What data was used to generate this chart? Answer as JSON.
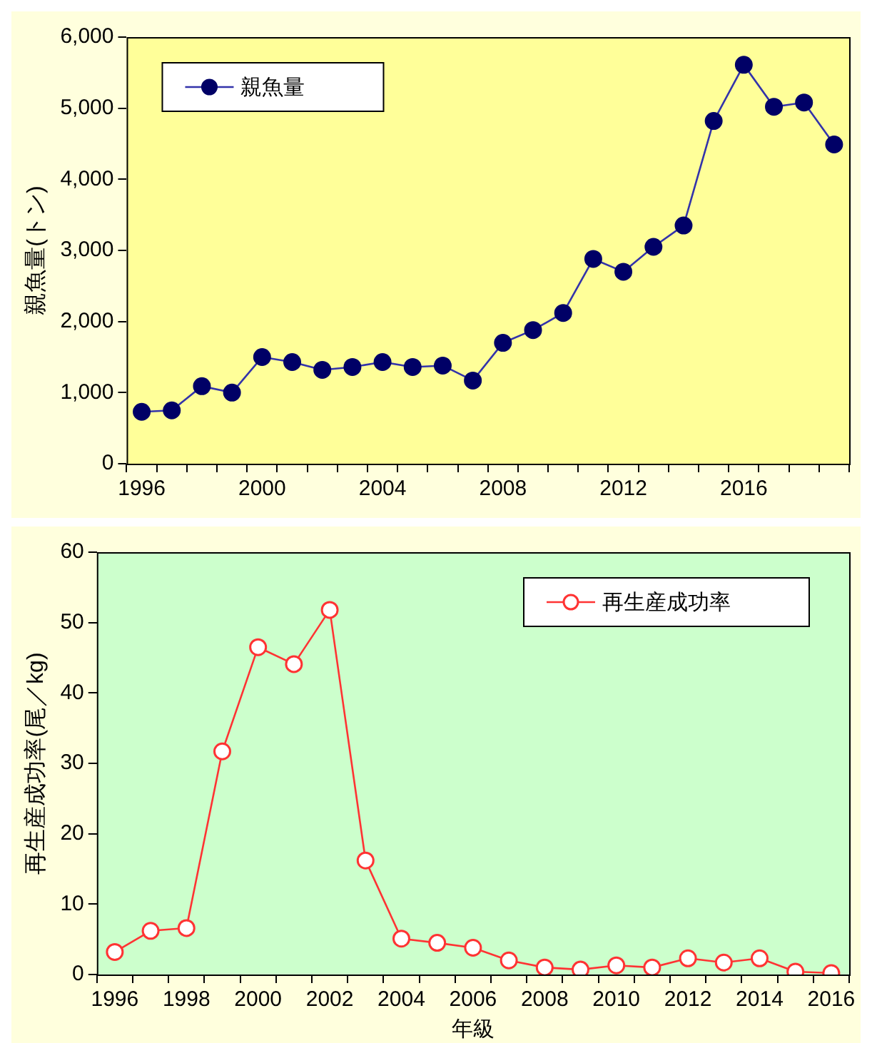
{
  "chart_data": [
    {
      "type": "line",
      "ylabel": "親魚量(トン)",
      "categories": [
        "1996",
        null,
        null,
        null,
        "2000",
        null,
        null,
        null,
        "2004",
        null,
        null,
        null,
        "2008",
        null,
        null,
        null,
        "2012",
        null,
        null,
        null,
        "2016",
        null,
        null,
        null
      ],
      "series": [
        {
          "name": "親魚量",
          "color": "#000066",
          "values": [
            730,
            750,
            1090,
            1000,
            1500,
            1430,
            1320,
            1360,
            1430,
            1360,
            1380,
            1170,
            1700,
            1880,
            2120,
            2880,
            2700,
            3050,
            3350,
            4820,
            5610,
            5020,
            5080,
            4490
          ]
        }
      ],
      "ylim": [
        0,
        6000
      ],
      "yticks": [
        {
          "value": 0,
          "label": "0"
        },
        {
          "value": 1000,
          "label": "1,000"
        },
        {
          "value": 2000,
          "label": "2,000"
        },
        {
          "value": 3000,
          "label": "3,000"
        },
        {
          "value": 4000,
          "label": "4,000"
        },
        {
          "value": 5000,
          "label": "5,000"
        },
        {
          "value": 6000,
          "label": "6,000"
        }
      ],
      "grid": false,
      "legend": "top left",
      "marker": "circle",
      "line_style": "solid"
    },
    {
      "type": "line",
      "xlabel": "年級",
      "ylabel": "再生産成功率(尾／kg)",
      "categories": [
        "1996",
        null,
        "1998",
        null,
        "2000",
        null,
        "2002",
        null,
        "2004",
        null,
        "2006",
        null,
        "2008",
        null,
        "2010",
        null,
        "2012",
        null,
        "2014",
        null,
        "2016"
      ],
      "series": [
        {
          "name": "再生産成功率",
          "color": "#ff3333",
          "values": [
            3.2,
            6.2,
            6.6,
            31.7,
            46.5,
            44.1,
            51.8,
            16.2,
            5.1,
            4.5,
            3.8,
            2.0,
            1.0,
            0.7,
            1.3,
            1.0,
            2.3,
            1.7,
            2.3,
            0.4,
            0.2
          ]
        }
      ],
      "ylim": [
        0,
        60
      ],
      "yticks": [
        0,
        10,
        20,
        30,
        40,
        50,
        60
      ],
      "grid": false,
      "legend": "top right",
      "marker": "circle",
      "line_style": "solid"
    }
  ]
}
